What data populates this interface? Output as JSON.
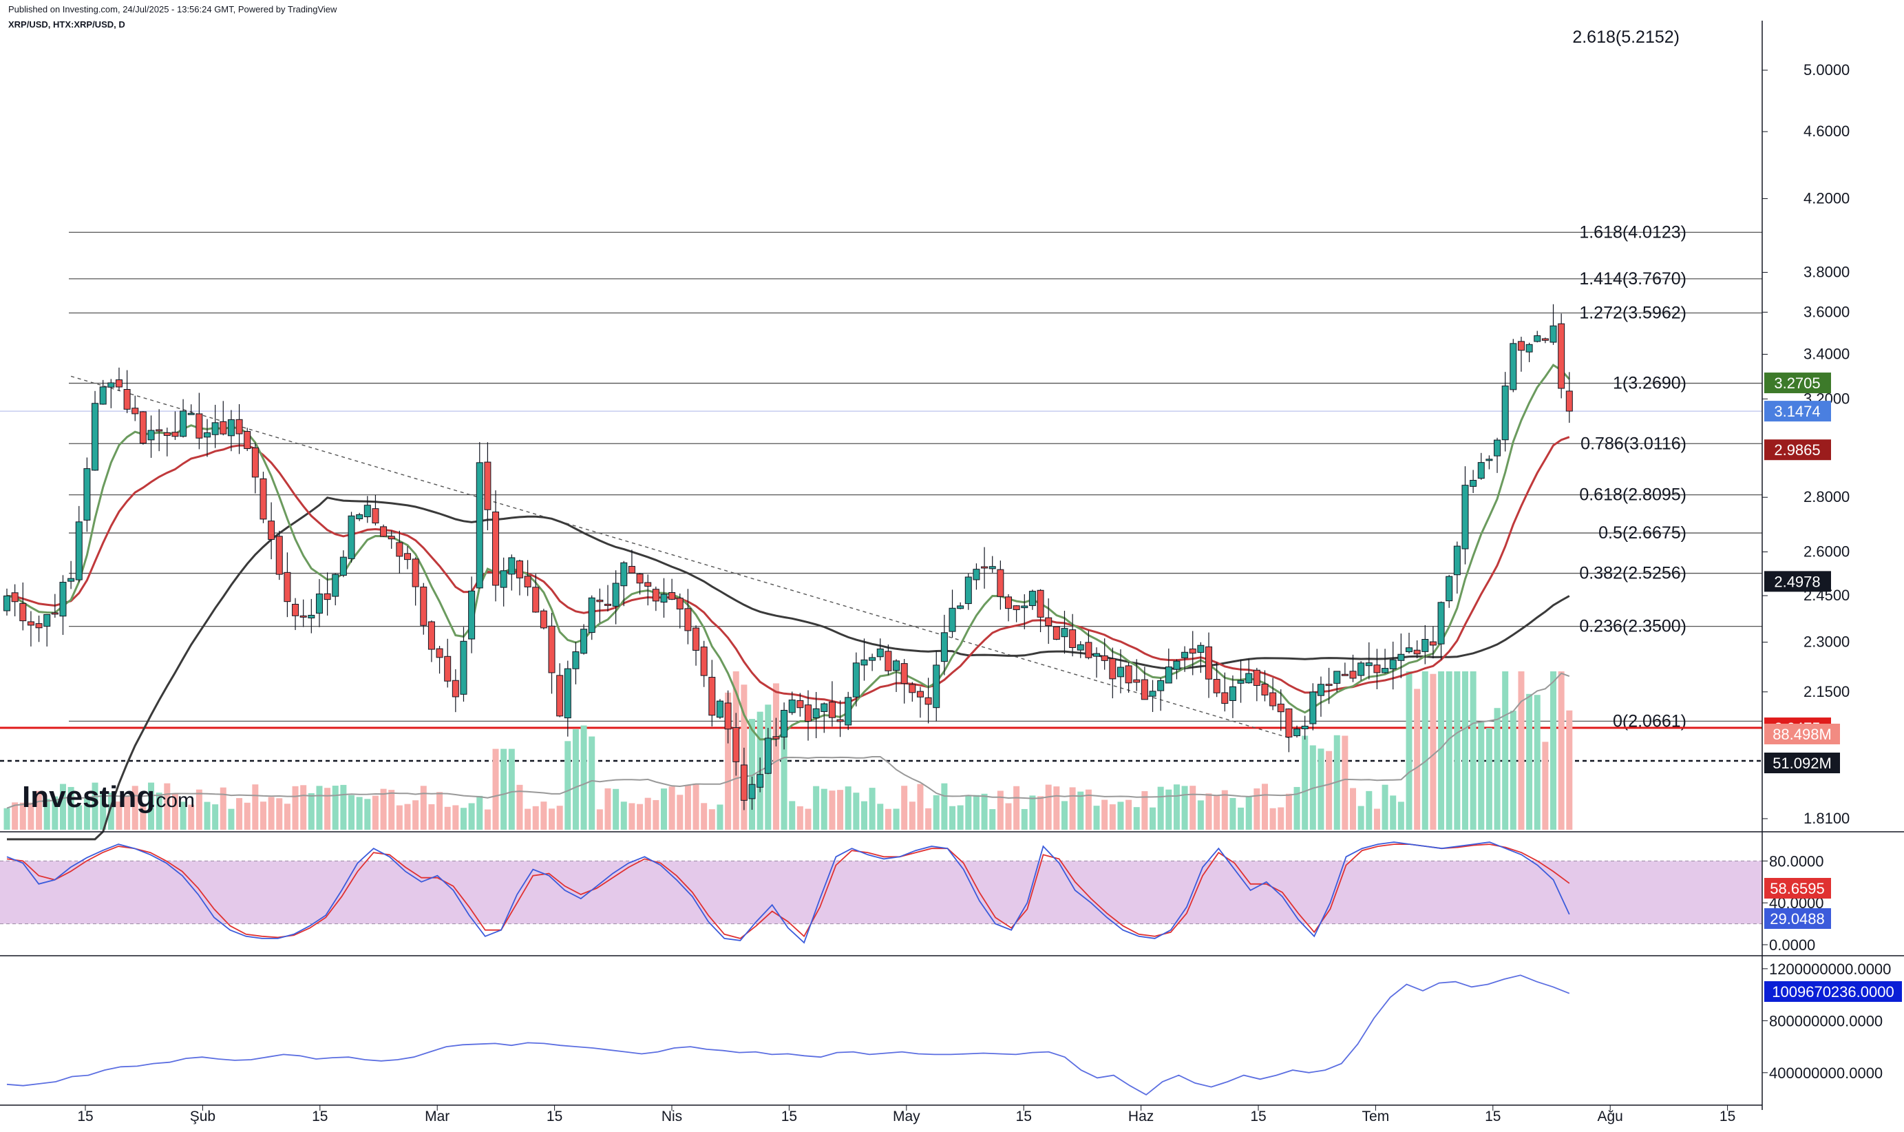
{
  "header": {
    "published": "Published on Investing.com, 24/Jul/2025 - 13:56:24 GMT, Powered by TradingView",
    "symbol": "XRP/USD, HTX:XRP/USD, D"
  },
  "logo": {
    "text": "Investing",
    "suffix": ".com"
  },
  "colors": {
    "up": "#26a69a",
    "down": "#ef5350",
    "upVol": "#8fdcc0",
    "downVol": "#f7b3b0",
    "ema_fast": "#6b9b5e",
    "ema_mid": "#c0393b",
    "ema_slow": "#3a3a3a",
    "stochK": "#3b5bdb",
    "stochD": "#e03131",
    "obv": "#5b6ee1",
    "support": "#e01b1b",
    "fib": "#555555"
  },
  "chart_data": [
    {
      "type": "candlestick",
      "title": "XRP/USD, HTX:XRP/USD, D",
      "x_ticks": [
        "15",
        "Şub",
        "15",
        "Mar",
        "15",
        "Nis",
        "15",
        "May",
        "15",
        "Haz",
        "15",
        "Tem",
        "15",
        "Ağu",
        "15"
      ],
      "y_ticks": [
        "5.0000",
        "4.6000",
        "4.2000",
        "3.8000",
        "3.6000",
        "3.4000",
        "3.2000",
        "2.8000",
        "2.6000",
        "2.4500",
        "2.3000",
        "2.1500",
        "1.8100"
      ],
      "y_scale": "log",
      "ylim": [
        1.75,
        5.2
      ],
      "fib_levels": [
        {
          "label": "1.618(4.0123)",
          "value": 4.0123
        },
        {
          "label": "1.414(3.7670)",
          "value": 3.767
        },
        {
          "label": "1.272(3.5962)",
          "value": 3.5962
        },
        {
          "label": "1(3.2690)",
          "value": 3.269
        },
        {
          "label": "0.786(3.0116)",
          "value": 3.0116
        },
        {
          "label": "0.618(2.8095)",
          "value": 2.8095
        },
        {
          "label": "0.5(2.6675)",
          "value": 2.6675
        },
        {
          "label": "0.382(2.5256)",
          "value": 2.5256
        },
        {
          "label": "0.236(2.3500)",
          "value": 2.35
        },
        {
          "label": "0(2.0661)",
          "value": 2.0661
        }
      ],
      "top_partial_label": "2.618(5.2152)",
      "price_tags": [
        {
          "text": "3.2705",
          "value": 3.2705,
          "color": "#3d7a2a"
        },
        {
          "text": "3.1474",
          "value": 3.1474,
          "color": "#4a7fe0"
        },
        {
          "text": "2.9865",
          "value": 2.9865,
          "color": "#9b1c1c"
        },
        {
          "text": "2.4978",
          "value": 2.4978,
          "color": "#131722"
        },
        {
          "text": "2.0475",
          "value": 2.0475,
          "color": "#e01b1b"
        }
      ],
      "volume_tags": [
        {
          "text": "88.498M",
          "color": "#f28b82"
        },
        {
          "text": "51.092M",
          "color": "#131722"
        }
      ],
      "volume_ref": 51.092,
      "support_line": 2.0475,
      "current_price_line": 3.1474,
      "keypoints": [
        {
          "d": 0,
          "c": 2.45
        },
        {
          "d": 4,
          "c": 2.35
        },
        {
          "d": 8,
          "c": 2.5
        },
        {
          "d": 11,
          "c": 3.15
        },
        {
          "d": 13,
          "c": 3.32
        },
        {
          "d": 17,
          "c": 3.05
        },
        {
          "d": 22,
          "c": 3.1
        },
        {
          "d": 26,
          "c": 3.05
        },
        {
          "d": 28,
          "c": 3.12
        },
        {
          "d": 31,
          "c": 2.9
        },
        {
          "d": 33,
          "c": 2.6
        },
        {
          "d": 36,
          "c": 2.38
        },
        {
          "d": 40,
          "c": 2.45
        },
        {
          "d": 42,
          "c": 2.62
        },
        {
          "d": 44,
          "c": 2.76
        },
        {
          "d": 47,
          "c": 2.68
        },
        {
          "d": 50,
          "c": 2.55
        },
        {
          "d": 53,
          "c": 2.3
        },
        {
          "d": 56,
          "c": 2.17
        },
        {
          "d": 58,
          "c": 2.45
        },
        {
          "d": 59,
          "c": 2.92
        },
        {
          "d": 61,
          "c": 2.5
        },
        {
          "d": 63,
          "c": 2.58
        },
        {
          "d": 65,
          "c": 2.45
        },
        {
          "d": 67,
          "c": 2.35
        },
        {
          "d": 69,
          "c": 2.1
        },
        {
          "d": 71,
          "c": 2.3
        },
        {
          "d": 73,
          "c": 2.42
        },
        {
          "d": 75,
          "c": 2.38
        },
        {
          "d": 77,
          "c": 2.53
        },
        {
          "d": 79,
          "c": 2.48
        },
        {
          "d": 82,
          "c": 2.47
        },
        {
          "d": 84,
          "c": 2.43
        },
        {
          "d": 86,
          "c": 2.26
        },
        {
          "d": 88,
          "c": 2.1
        },
        {
          "d": 90,
          "c": 2.08
        },
        {
          "d": 92,
          "c": 1.85
        },
        {
          "d": 94,
          "c": 1.95
        },
        {
          "d": 96,
          "c": 2.02
        },
        {
          "d": 98,
          "c": 2.12
        },
        {
          "d": 101,
          "c": 2.08
        },
        {
          "d": 104,
          "c": 2.1
        },
        {
          "d": 106,
          "c": 2.22
        },
        {
          "d": 109,
          "c": 2.25
        },
        {
          "d": 112,
          "c": 2.2
        },
        {
          "d": 115,
          "c": 2.15
        },
        {
          "d": 118,
          "c": 2.38
        },
        {
          "d": 121,
          "c": 2.58
        },
        {
          "d": 123,
          "c": 2.55
        },
        {
          "d": 125,
          "c": 2.42
        },
        {
          "d": 128,
          "c": 2.44
        },
        {
          "d": 131,
          "c": 2.35
        },
        {
          "d": 134,
          "c": 2.3
        },
        {
          "d": 137,
          "c": 2.25
        },
        {
          "d": 140,
          "c": 2.18
        },
        {
          "d": 143,
          "c": 2.12
        },
        {
          "d": 146,
          "c": 2.26
        },
        {
          "d": 148,
          "c": 2.3
        },
        {
          "d": 150,
          "c": 2.22
        },
        {
          "d": 152,
          "c": 2.14
        },
        {
          "d": 154,
          "c": 2.22
        },
        {
          "d": 157,
          "c": 2.15
        },
        {
          "d": 160,
          "c": 2.02
        },
        {
          "d": 162,
          "c": 2.08
        },
        {
          "d": 164,
          "c": 2.16
        },
        {
          "d": 166,
          "c": 2.18
        },
        {
          "d": 169,
          "c": 2.2
        },
        {
          "d": 172,
          "c": 2.22
        },
        {
          "d": 175,
          "c": 2.25
        },
        {
          "d": 178,
          "c": 2.28
        },
        {
          "d": 180,
          "c": 2.52
        },
        {
          "d": 182,
          "c": 2.8
        },
        {
          "d": 184,
          "c": 2.92
        },
        {
          "d": 186,
          "c": 3.0
        },
        {
          "d": 188,
          "c": 3.45
        },
        {
          "d": 190,
          "c": 3.4
        },
        {
          "d": 192,
          "c": 3.52
        },
        {
          "d": 193,
          "c": 3.55
        },
        {
          "d": 194,
          "c": 3.25
        },
        {
          "d": 195,
          "c": 3.1474
        }
      ]
    },
    {
      "type": "line",
      "title": "Stochastic",
      "y_ticks": [
        "80.0000",
        "40.0000",
        "0.0000"
      ],
      "ylim": [
        0,
        100
      ],
      "band": [
        20,
        80
      ],
      "tags": [
        {
          "text": "58.6595",
          "color": "#e03131"
        },
        {
          "text": "29.0488",
          "color": "#3b5bdb"
        }
      ],
      "k": [
        84,
        78,
        58,
        62,
        74,
        83,
        90,
        96,
        92,
        86,
        78,
        66,
        48,
        26,
        14,
        8,
        6,
        6,
        10,
        18,
        28,
        52,
        78,
        92,
        84,
        70,
        60,
        66,
        52,
        28,
        8,
        14,
        48,
        72,
        66,
        52,
        44,
        56,
        68,
        78,
        84,
        76,
        62,
        46,
        22,
        6,
        4,
        22,
        38,
        16,
        2,
        44,
        84,
        92,
        86,
        82,
        84,
        90,
        94,
        92,
        72,
        42,
        20,
        14,
        40,
        94,
        78,
        52,
        40,
        26,
        14,
        8,
        6,
        14,
        36,
        74,
        92,
        72,
        52,
        60,
        46,
        24,
        8,
        40,
        84,
        92,
        96,
        98,
        96,
        94,
        92,
        94,
        96,
        98,
        92,
        86,
        76,
        62,
        29
      ],
      "d": [
        82,
        80,
        66,
        62,
        70,
        80,
        88,
        94,
        92,
        88,
        80,
        70,
        54,
        34,
        18,
        10,
        8,
        7,
        9,
        16,
        26,
        46,
        70,
        88,
        86,
        74,
        64,
        64,
        56,
        36,
        14,
        14,
        40,
        66,
        68,
        56,
        48,
        54,
        64,
        74,
        82,
        78,
        66,
        50,
        28,
        10,
        6,
        18,
        32,
        22,
        8,
        36,
        76,
        90,
        88,
        84,
        84,
        88,
        92,
        92,
        78,
        50,
        26,
        16,
        34,
        86,
        82,
        60,
        44,
        30,
        18,
        10,
        8,
        12,
        30,
        66,
        88,
        78,
        58,
        58,
        50,
        30,
        12,
        34,
        76,
        90,
        94,
        96,
        96,
        94,
        92,
        93,
        95,
        96,
        93,
        88,
        80,
        70,
        58.66
      ]
    },
    {
      "type": "line",
      "title": "OBV",
      "y_ticks": [
        "1200000000.0000",
        "800000000.0000",
        "400000000.0000"
      ],
      "ylim": [
        150000000,
        1300000000
      ],
      "tag": {
        "text": "1009670236.0000",
        "color": "#0a1fd6"
      },
      "values": [
        310,
        300,
        315,
        330,
        370,
        380,
        420,
        445,
        450,
        470,
        480,
        510,
        520,
        505,
        495,
        500,
        520,
        540,
        530,
        505,
        515,
        520,
        500,
        490,
        500,
        520,
        560,
        600,
        615,
        620,
        625,
        610,
        630,
        625,
        610,
        600,
        590,
        575,
        560,
        545,
        560,
        590,
        600,
        580,
        570,
        555,
        560,
        540,
        545,
        530,
        520,
        555,
        560,
        540,
        550,
        560,
        545,
        540,
        540,
        545,
        550,
        545,
        540,
        555,
        560,
        520,
        420,
        360,
        380,
        300,
        230,
        330,
        380,
        320,
        290,
        330,
        380,
        350,
        380,
        420,
        400,
        420,
        470,
        620,
        820,
        980,
        1080,
        1030,
        1090,
        1100,
        1060,
        1080,
        1120,
        1150,
        1100,
        1060,
        1010
      ]
    }
  ]
}
